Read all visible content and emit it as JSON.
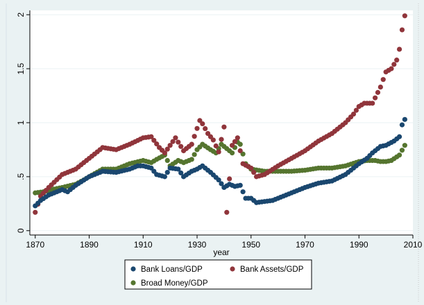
{
  "chart_data": {
    "type": "scatter",
    "title": "",
    "xlabel": "year",
    "ylabel": "",
    "xlim": [
      1868,
      2010
    ],
    "ylim": [
      -0.04,
      2.04
    ],
    "x_ticks": [
      1870,
      1890,
      1910,
      1930,
      1950,
      1970,
      1990,
      2010
    ],
    "y_ticks": [
      {
        "value": 0,
        "label": "0"
      },
      {
        "value": 0.5,
        "label": ".5"
      },
      {
        "value": 1,
        "label": "1"
      },
      {
        "value": 1.5,
        "label": "1.5"
      },
      {
        "value": 2,
        "label": "2"
      }
    ],
    "grid": true,
    "legend_position": "bottom",
    "colors": {
      "plot_background": "#ffffff",
      "outer_background": "#eaf2f3",
      "bank_loans": "#1a476f",
      "bank_assets": "#90353b",
      "broad_money": "#55752f"
    },
    "anchor_series": [
      {
        "name": "Bank Loans/GDP",
        "color_key": "bank_loans",
        "x": [
          1870,
          1872,
          1875,
          1880,
          1882,
          1885,
          1890,
          1895,
          1900,
          1905,
          1908,
          1910,
          1913,
          1915,
          1918,
          1920,
          1923,
          1925,
          1928,
          1930,
          1932,
          1935,
          1938,
          1940,
          1942,
          1944,
          1946,
          1948,
          1950,
          1952,
          1955,
          1958,
          1960,
          1965,
          1970,
          1975,
          1980,
          1985,
          1990,
          1993,
          1995,
          1998,
          2000,
          2003,
          2005,
          2006,
          2007
        ],
        "y": [
          0.23,
          0.28,
          0.33,
          0.38,
          0.36,
          0.42,
          0.5,
          0.55,
          0.54,
          0.57,
          0.6,
          0.6,
          0.58,
          0.52,
          0.5,
          0.58,
          0.57,
          0.5,
          0.55,
          0.57,
          0.6,
          0.54,
          0.47,
          0.4,
          0.43,
          0.41,
          0.42,
          0.3,
          0.3,
          0.26,
          0.27,
          0.28,
          0.3,
          0.35,
          0.4,
          0.44,
          0.46,
          0.52,
          0.62,
          0.67,
          0.72,
          0.78,
          0.79,
          0.83,
          0.87,
          0.98,
          1.03
        ]
      },
      {
        "name": "Bank Assets/GDP",
        "color_key": "bank_assets",
        "x": [
          1870,
          1872,
          1875,
          1880,
          1885,
          1890,
          1895,
          1900,
          1905,
          1910,
          1913,
          1916,
          1918,
          1920,
          1922,
          1925,
          1928,
          1931,
          1932,
          1934,
          1936,
          1938,
          1940,
          1941,
          1943,
          1945,
          1947,
          1950,
          1952,
          1955,
          1960,
          1965,
          1970,
          1975,
          1980,
          1985,
          1988,
          1990,
          1992,
          1995,
          1998,
          2000,
          2002,
          2004,
          2005,
          2006,
          2007
        ],
        "y": [
          0.17,
          0.32,
          0.4,
          0.52,
          0.57,
          0.67,
          0.77,
          0.75,
          0.8,
          0.86,
          0.87,
          0.77,
          0.72,
          0.79,
          0.86,
          0.74,
          0.8,
          1.02,
          0.99,
          0.9,
          0.84,
          0.73,
          0.96,
          0.17,
          0.79,
          0.86,
          0.62,
          0.58,
          0.5,
          0.52,
          0.6,
          0.67,
          0.74,
          0.83,
          0.9,
          1.0,
          1.08,
          1.15,
          1.18,
          1.18,
          1.33,
          1.47,
          1.5,
          1.58,
          1.68,
          1.86,
          1.99
        ]
      },
      {
        "name": "Broad Money/GDP",
        "color_key": "broad_money",
        "x": [
          1870,
          1873,
          1876,
          1880,
          1885,
          1888,
          1890,
          1895,
          1900,
          1905,
          1910,
          1913,
          1915,
          1918,
          1920,
          1923,
          1925,
          1928,
          1930,
          1932,
          1935,
          1937,
          1939,
          1941,
          1943,
          1945,
          1946,
          1948,
          1950,
          1955,
          1960,
          1965,
          1970,
          1975,
          1980,
          1985,
          1990,
          1993,
          1996,
          1998,
          2000,
          2002,
          2005,
          2007
        ],
        "y": [
          0.35,
          0.36,
          0.38,
          0.4,
          0.43,
          0.47,
          0.5,
          0.57,
          0.57,
          0.62,
          0.65,
          0.63,
          0.66,
          0.7,
          0.6,
          0.65,
          0.63,
          0.66,
          0.75,
          0.8,
          0.75,
          0.72,
          0.8,
          0.76,
          0.72,
          0.82,
          0.8,
          0.62,
          0.57,
          0.55,
          0.55,
          0.55,
          0.56,
          0.58,
          0.58,
          0.6,
          0.64,
          0.65,
          0.65,
          0.64,
          0.64,
          0.65,
          0.7,
          0.79
        ]
      }
    ],
    "legend": [
      {
        "name": "Bank Loans/GDP",
        "color_key": "bank_loans"
      },
      {
        "name": "Bank Assets/GDP",
        "color_key": "bank_assets"
      },
      {
        "name": "Broad Money/GDP",
        "color_key": "broad_money"
      }
    ]
  }
}
